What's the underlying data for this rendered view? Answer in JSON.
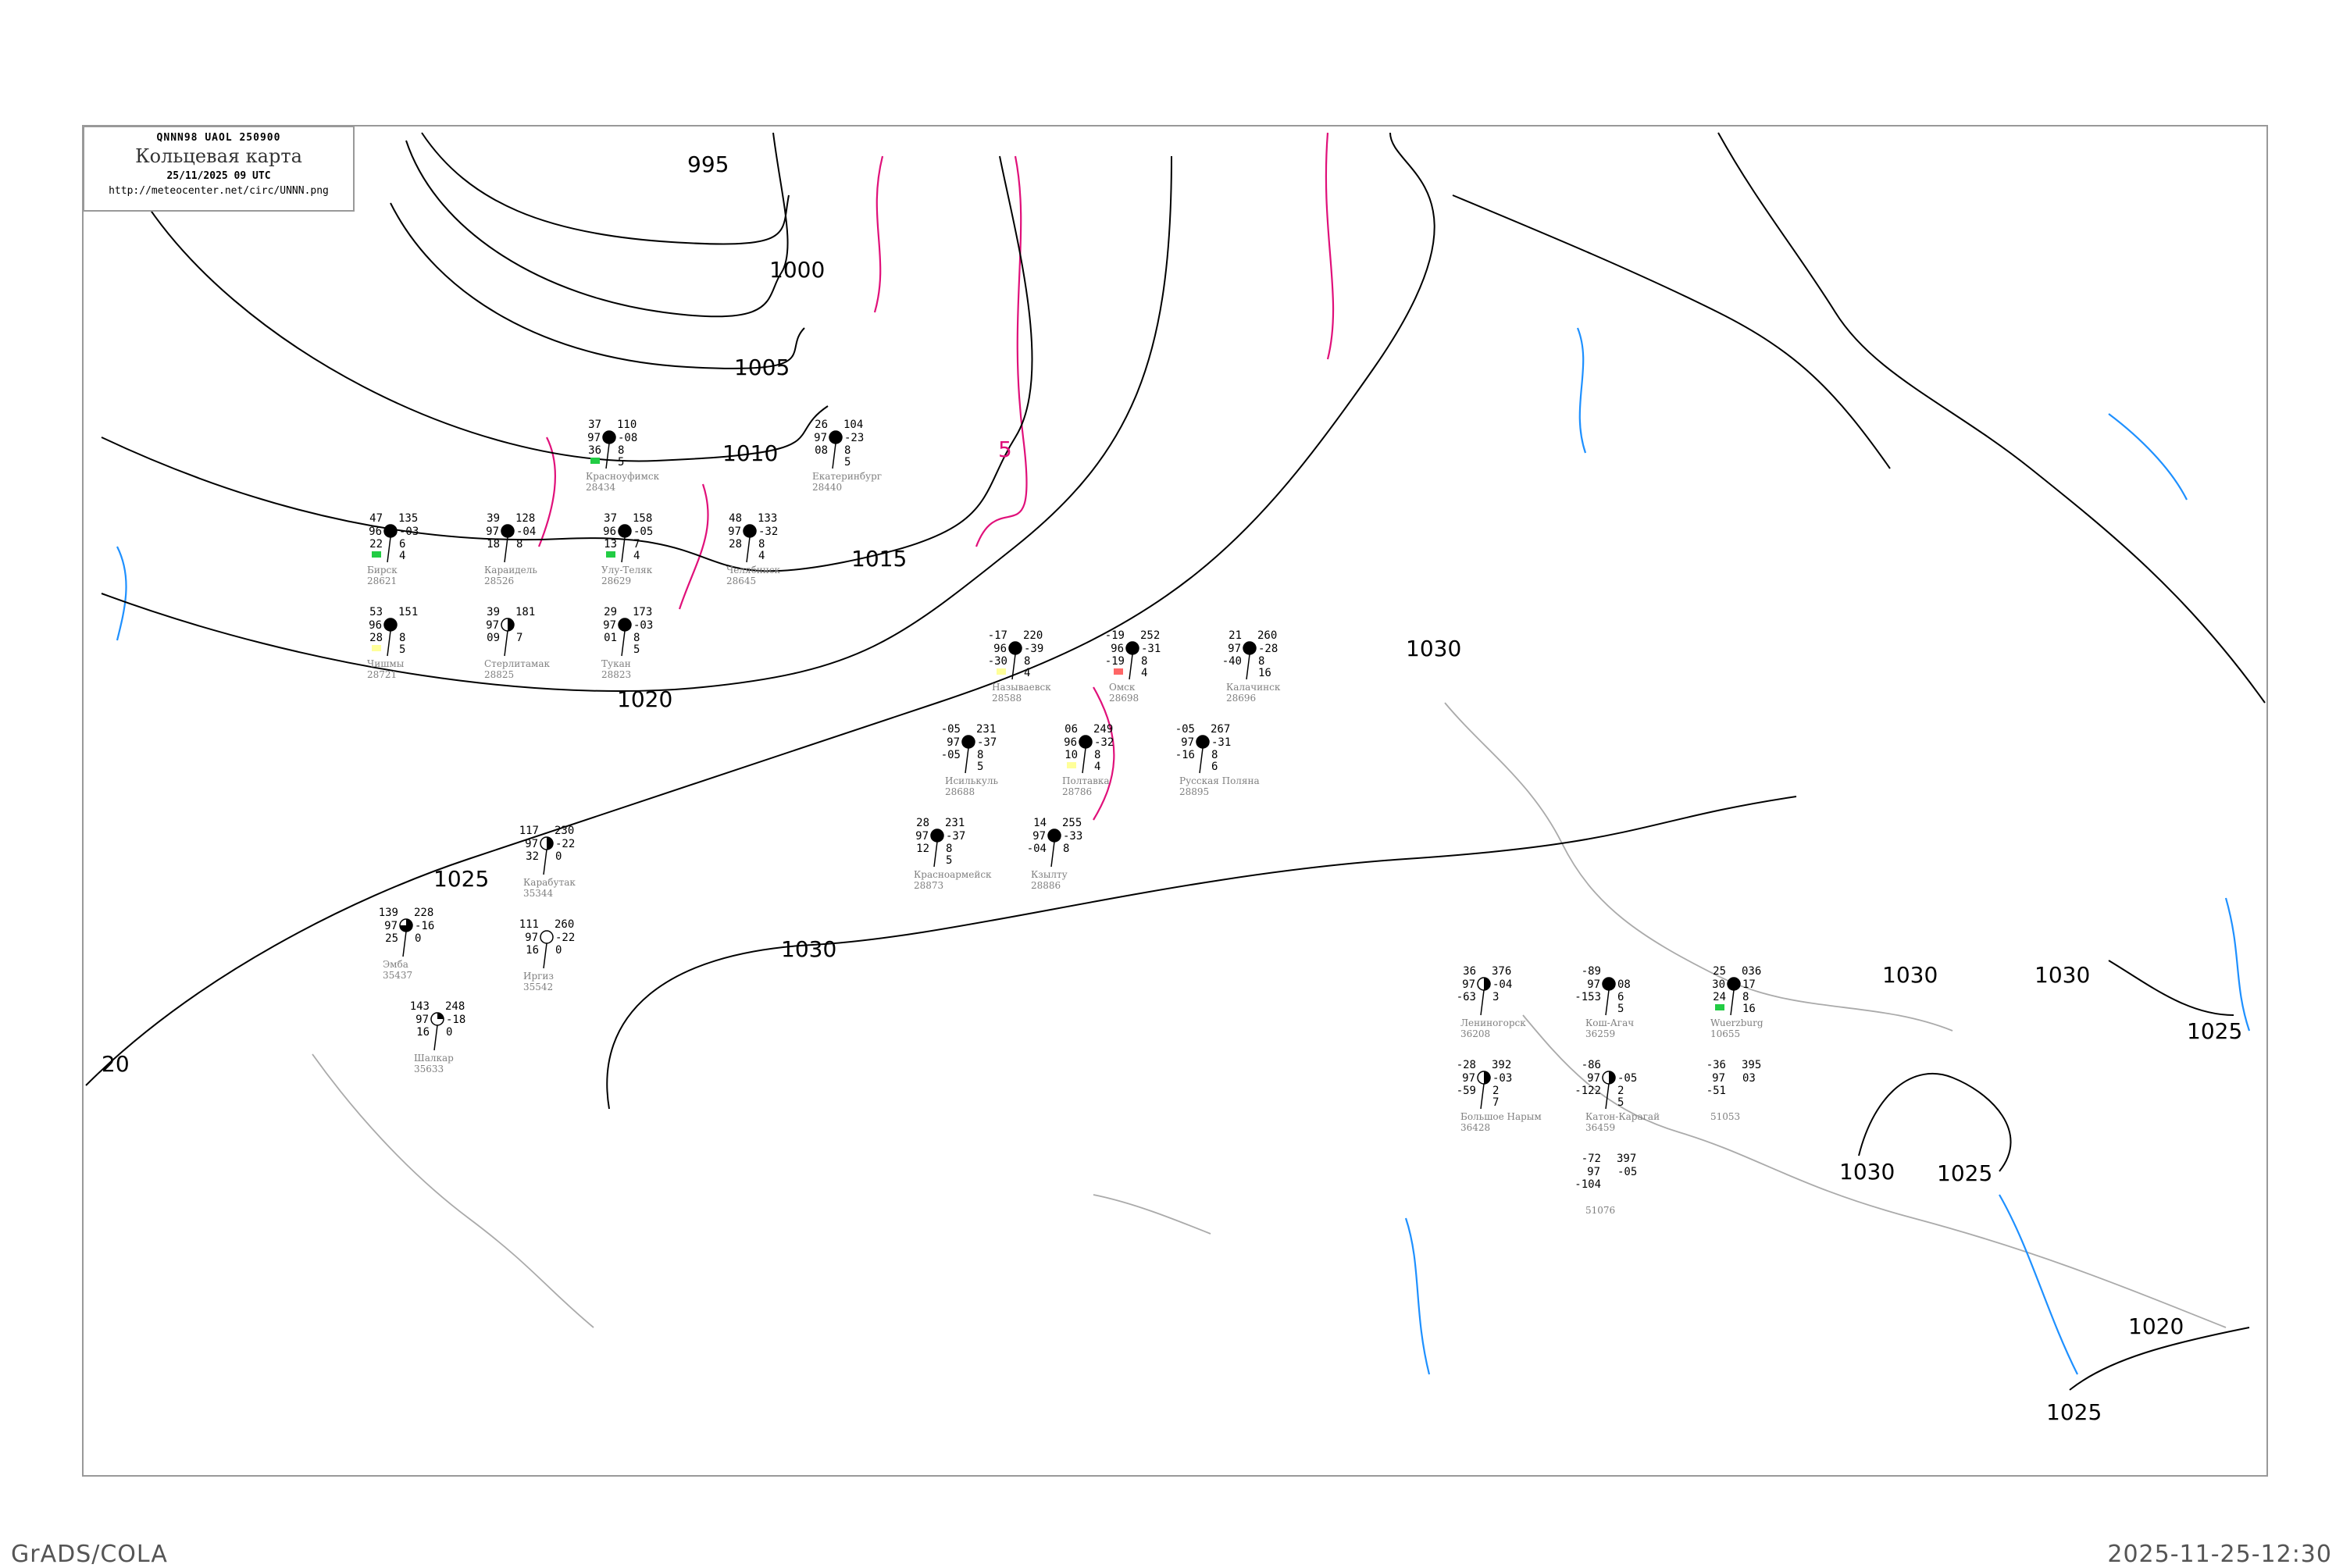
{
  "header": {
    "code": "QNNN98  UAOL  250900",
    "title": "Кольцевая карта",
    "date": "25/11/2025 09 UTC",
    "url": "http://meteocenter.net/circ/UNNN.png"
  },
  "footer": {
    "left": "GrADS/COLA",
    "right": "2025-11-25-12:30"
  },
  "colors": {
    "isobars": "#000000",
    "isotherms": "#e0107a",
    "rivers": "#1e90ff",
    "borders": "#aaaaaa",
    "station_names": "#808080",
    "precip_yellow": "#ffff99",
    "precip_green": "#22cc44",
    "precip_red": "#ff6666"
  },
  "isobar_labels": [
    "995",
    "1000",
    "1005",
    "1010",
    "1015",
    "1020",
    "1025",
    "1030",
    "1030",
    "1030",
    "1030",
    "1025",
    "1030",
    "1025",
    "1020",
    "1025",
    "20",
    "5"
  ],
  "stations": [
    {
      "name": "Называевск",
      "id": "28588",
      "tl": "-17",
      "ml": "96",
      "bl": "-30",
      "tr": "220",
      "mr": "-39",
      "r2": "8",
      "r3": "4",
      "cover": "full",
      "mark": "yellow"
    },
    {
      "name": "Исилькуль",
      "id": "28688",
      "tl": "-05",
      "ml": "97",
      "bl": "-05",
      "tr": "231",
      "mr": "-37",
      "r2": "8",
      "r3": "5",
      "cover": "full",
      "mark": ""
    },
    {
      "name": "Омск",
      "id": "28698",
      "tl": "-19",
      "ml": "96",
      "bl": "-19",
      "tr": "252",
      "mr": "-31",
      "r2": "8",
      "r3": "4",
      "cover": "full",
      "mark": "red"
    },
    {
      "name": "Калачинск",
      "id": "28696",
      "tl": "21",
      "ml": "97",
      "bl": "-40",
      "tr": "260",
      "mr": "-28",
      "r2": "8",
      "r3": "16",
      "cover": "full",
      "mark": ""
    },
    {
      "name": "Полтавка",
      "id": "28786",
      "tl": "06",
      "ml": "96",
      "bl": "10",
      "tr": "249",
      "mr": "-32",
      "r2": "8",
      "r3": "4",
      "cover": "full",
      "mark": "yellow"
    },
    {
      "name": "Красноармейск",
      "id": "28873",
      "tl": "28",
      "ml": "97",
      "bl": "12",
      "tr": "231",
      "mr": "-37",
      "r2": "8",
      "r3": "5",
      "cover": "full",
      "mark": ""
    },
    {
      "name": "Кзылту",
      "id": "28886",
      "tl": "14",
      "ml": "97",
      "bl": "-04",
      "tr": "255",
      "mr": "-33",
      "r2": "8",
      "r3": "",
      "cover": "full",
      "mark": ""
    },
    {
      "name": "Русская Поляна",
      "id": "28895",
      "tl": "-05",
      "ml": "97",
      "bl": "-16",
      "tr": "267",
      "mr": "-31",
      "r2": "8",
      "r3": "6",
      "cover": "full",
      "mark": ""
    },
    {
      "name": "Эмба",
      "id": "35437",
      "tl": "139",
      "ml": "97",
      "bl": "25",
      "tr": "228",
      "mr": "-16",
      "r2": "0",
      "r3": "",
      "cover": "threequarter",
      "mark": ""
    },
    {
      "name": "Карабутак",
      "id": "35344",
      "tl": "117",
      "ml": "97",
      "bl": "32",
      "tr": "230",
      "mr": "-22",
      "r2": "0",
      "r3": "",
      "cover": "half",
      "mark": ""
    },
    {
      "name": "Иргиз",
      "id": "35542",
      "tl": "111",
      "ml": "97",
      "bl": "16",
      "tr": "260",
      "mr": "-22",
      "r2": "0",
      "r3": "",
      "cover": "empty",
      "mark": ""
    },
    {
      "name": "Шалкар",
      "id": "35633",
      "tl": "143",
      "ml": "97",
      "bl": "16",
      "tr": "248",
      "mr": "-18",
      "r2": "0",
      "r3": "",
      "cover": "quarter",
      "mark": ""
    },
    {
      "name": "Бирск",
      "id": "28621",
      "tl": "47",
      "ml": "96",
      "bl": "22",
      "tr": "135",
      "mr": "-03",
      "r2": "6",
      "r3": "4",
      "cover": "full",
      "mark": "green"
    },
    {
      "name": "Улу-Теляк",
      "id": "28629",
      "tl": "37",
      "ml": "96",
      "bl": "13",
      "tr": "158",
      "mr": "-05",
      "r2": "7",
      "r3": "4",
      "cover": "full",
      "mark": "green"
    },
    {
      "name": "Чишмы",
      "id": "28721",
      "tl": "53",
      "ml": "96",
      "bl": "28",
      "tr": "151",
      "mr": "",
      "r2": "8",
      "r3": "5",
      "cover": "full",
      "mark": "yellow"
    },
    {
      "name": "Стерлитамак",
      "id": "28825",
      "tl": "39",
      "ml": "97",
      "bl": "09",
      "tr": "181",
      "mr": "",
      "r2": "7",
      "r3": "",
      "cover": "half",
      "mark": ""
    },
    {
      "name": "Тукан",
      "id": "28823",
      "tl": "29",
      "ml": "97",
      "bl": "01",
      "tr": "173",
      "mr": "-03",
      "r2": "8",
      "r3": "5",
      "cover": "full",
      "mark": ""
    },
    {
      "name": "Челябинск",
      "id": "28645",
      "tl": "48",
      "ml": "97",
      "bl": "28",
      "tr": "133",
      "mr": "-32",
      "r2": "8",
      "r3": "4",
      "cover": "full",
      "mark": ""
    },
    {
      "name": "Красноуфимск",
      "id": "28434",
      "tl": "37",
      "ml": "97",
      "bl": "36",
      "tr": "110",
      "mr": "-08",
      "r2": "8",
      "r3": "5",
      "cover": "full",
      "mark": "green"
    },
    {
      "name": "Екатеринбург",
      "id": "28440",
      "tl": "26",
      "ml": "97",
      "bl": "08",
      "tr": "104",
      "mr": "-23",
      "r2": "8",
      "r3": "5",
      "cover": "full",
      "mark": ""
    },
    {
      "name": "Караидель",
      "id": "28526",
      "tl": "39",
      "ml": "97",
      "bl": "18",
      "tr": "128",
      "mr": "-04",
      "r2": "8",
      "r3": "",
      "cover": "full",
      "mark": ""
    },
    {
      "name": "Лениногорск",
      "id": "36208",
      "tl": "36",
      "ml": "97",
      "bl": "-63",
      "tr": "376",
      "mr": "-04",
      "r2": "3",
      "r3": "",
      "cover": "half",
      "mark": ""
    },
    {
      "name": "Большое Нарым",
      "id": "36428",
      "tl": "-28",
      "ml": "97",
      "bl": "-59",
      "tr": "392",
      "mr": "-03",
      "r2": "2",
      "r3": "7",
      "cover": "half",
      "mark": ""
    },
    {
      "name": "Катон-Карагай",
      "id": "36459",
      "tl": "-86",
      "ml": "97",
      "bl": "-122",
      "tr": "",
      "mr": "-05",
      "r2": "2",
      "r3": "5",
      "cover": "half",
      "mark": ""
    },
    {
      "name": "Кош-Агач",
      "id": "36259",
      "tl": "-89",
      "ml": "97",
      "bl": "-153",
      "tr": "",
      "mr": "08",
      "r2": "6",
      "r3": "5",
      "cover": "full",
      "mark": ""
    },
    {
      "name": "Wuerzburg",
      "id": "10655",
      "tl": "25",
      "ml": "30",
      "bl": "24",
      "tr": "036",
      "mr": "17",
      "r2": "8",
      "r3": "16",
      "cover": "full",
      "mark": "green"
    },
    {
      "name": "",
      "id": "51053",
      "tl": "-36",
      "ml": "97",
      "bl": "-51",
      "tr": "395",
      "mr": "03",
      "r2": "",
      "r3": "",
      "cover": "none",
      "mark": ""
    },
    {
      "name": "",
      "id": "51076",
      "tl": "-72",
      "ml": "97",
      "bl": "-104",
      "tr": "397",
      "mr": "-05",
      "r2": "",
      "r3": "",
      "cover": "none",
      "mark": ""
    }
  ]
}
